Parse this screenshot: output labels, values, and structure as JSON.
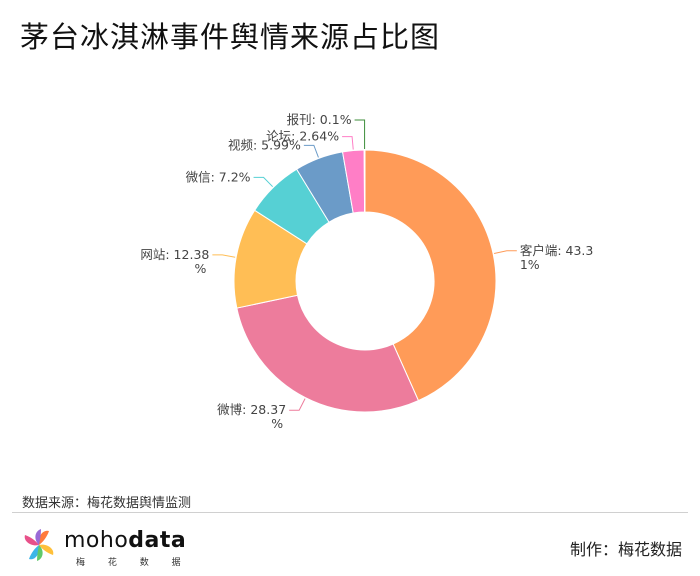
{
  "title": "茅台冰淇淋事件舆情来源占比图",
  "source_note": "数据来源：梅花数据舆情监测",
  "logo": {
    "word_light": "moho",
    "word_bold": "data",
    "sub": "梅 花 数 据"
  },
  "maker": "制作：梅花数据",
  "chart_data": {
    "type": "pie",
    "donut": true,
    "title": "茅台冰淇淋事件舆情来源占比图",
    "slices": [
      {
        "label": "客户端",
        "value": 43.31,
        "text": [
          "客户端: 43.3",
          "1%"
        ],
        "color": "#ff9b58"
      },
      {
        "label": "微博",
        "value": 28.37,
        "text": [
          "微博: 28.37",
          "%"
        ],
        "color": "#ed7c9c"
      },
      {
        "label": "网站",
        "value": 12.38,
        "text": [
          "网站: 12.38",
          "%"
        ],
        "color": "#ffbe55"
      },
      {
        "label": "微信",
        "value": 7.2,
        "text": [
          "微信: 7.2%"
        ],
        "color": "#56d0d4"
      },
      {
        "label": "视频",
        "value": 5.99,
        "text": [
          "视频: 5.99%"
        ],
        "color": "#6b9bc8"
      },
      {
        "label": "论坛",
        "value": 2.64,
        "text": [
          "论坛: 2.64%"
        ],
        "color": "#ff7ec6"
      },
      {
        "label": "报刊",
        "value": 0.1,
        "text": [
          "报刊: 0.1%"
        ],
        "color": "#3d8c3a"
      }
    ]
  }
}
